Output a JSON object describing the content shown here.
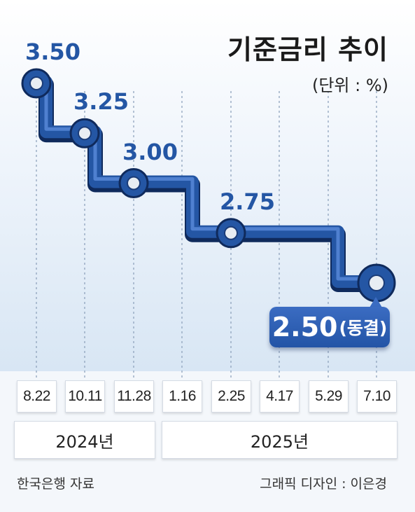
{
  "title": "기준금리 추이",
  "unit": "(단위 : %)",
  "chart_data": {
    "type": "line",
    "step": true,
    "title": "기준금리 추이",
    "categories": [
      "8.22",
      "10.11",
      "11.28",
      "1.16",
      "2.25",
      "4.17",
      "5.29",
      "7.10"
    ],
    "years": [
      {
        "label": "2024년",
        "dates": [
          "8.22",
          "10.11",
          "11.28"
        ]
      },
      {
        "label": "2025년",
        "dates": [
          "1.16",
          "2.25",
          "4.17",
          "5.29",
          "7.10"
        ]
      }
    ],
    "changes": [
      {
        "date": "8.22",
        "value": 3.5,
        "label": "3.50"
      },
      {
        "date": "10.11",
        "value": 3.25,
        "label": "3.25"
      },
      {
        "date": "11.28",
        "value": 3.0,
        "label": "3.00"
      },
      {
        "date": "2.25",
        "value": 2.75,
        "label": "2.75"
      },
      {
        "date": "7.10",
        "value": 2.5,
        "label": "2.50",
        "note": "(동결)"
      }
    ],
    "values": [
      3.5,
      3.25,
      3.0,
      3.0,
      2.75,
      2.75,
      2.5,
      2.5
    ],
    "colors": {
      "line": "#2456a4",
      "label": "#2456a4",
      "badge": "#2e5fb4"
    }
  },
  "labels": {
    "source": "한국은행 자료",
    "credit": "그래픽 디자인 : 이은경"
  }
}
